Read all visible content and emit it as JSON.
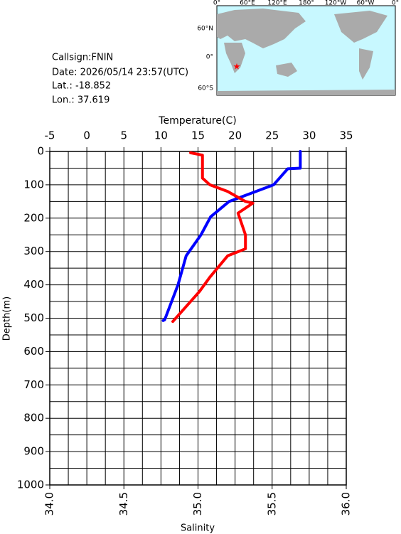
{
  "info": {
    "callsign": "Callsign:FNIN",
    "date": "Date:  2026/05/14 23:57(UTC)",
    "lat": "Lat.:  -18.852",
    "lon": "Lon.:   37.619"
  },
  "map": {
    "lon_labels": [
      "0°",
      "60°E",
      "120°E",
      "180°",
      "120°W",
      "60°W",
      "0°"
    ],
    "lat_labels": [
      "60°N",
      "0°",
      "60°S"
    ]
  },
  "chart_data": {
    "type": "profile",
    "x2_label": "Temperature(C)",
    "x_label": "Salinity",
    "y_label": "Depth(m)",
    "x2lim": [
      -5,
      35
    ],
    "x2ticks": [
      -5,
      0,
      5,
      10,
      15,
      20,
      25,
      30,
      35
    ],
    "x2grid_step": 2.5,
    "xlim": [
      34,
      36
    ],
    "xticks": [
      {
        "value": 34,
        "label": "34.0"
      },
      {
        "value": 34.5,
        "label": "34.5"
      },
      {
        "value": 35,
        "label": "35.0"
      },
      {
        "value": 35.5,
        "label": "35.5"
      },
      {
        "value": 36,
        "label": "36.0"
      }
    ],
    "ylim": [
      1000,
      0
    ],
    "yticks": [
      0,
      100,
      200,
      300,
      400,
      500,
      600,
      700,
      800,
      900,
      1000
    ],
    "ygrid_step": 50,
    "grid": true,
    "series": [
      {
        "color": "#0000ff",
        "axis": "x2",
        "x": [
          28.8,
          28.8,
          27.1,
          25.2,
          19.2,
          16.7,
          15.4,
          13.4,
          12.3,
          10.5,
          10.3
        ],
        "y": [
          0,
          50,
          52,
          100,
          150,
          196,
          250,
          313,
          400,
          505,
          507
        ]
      },
      {
        "color": "#ff0000",
        "axis": "x",
        "x": [
          34.95,
          35.03,
          35.03,
          35.08,
          35.2,
          35.32,
          35.37,
          35.27,
          35.32,
          35.32,
          35.2,
          35.08,
          35.01,
          34.84,
          34.83
        ],
        "y": [
          4,
          11,
          80,
          100,
          120,
          150,
          155,
          185,
          250,
          292,
          313,
          377,
          420,
          505,
          510
        ]
      }
    ]
  }
}
